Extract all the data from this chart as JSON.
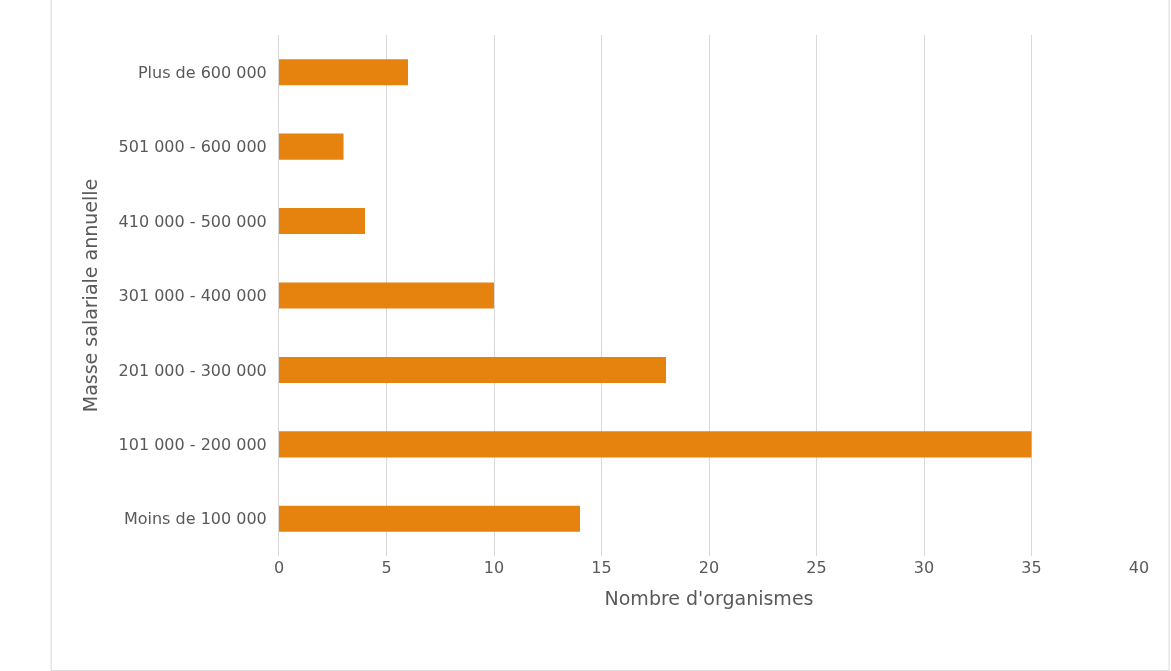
{
  "chart_data": {
    "type": "bar",
    "orientation": "horizontal",
    "xlabel": "Nombre d'organismes",
    "ylabel": "Masse salariale annuelle",
    "categories": [
      "Plus de 600 000",
      "501 000 - 600 000",
      "410 000 - 500 000",
      "301 000 - 400 000",
      "201 000 - 300 000",
      "101 000 - 200 000",
      "Moins de 100 000"
    ],
    "values": [
      6,
      3,
      4,
      10,
      18,
      35,
      14
    ],
    "color": "#e6820e",
    "xlim": [
      0,
      40
    ],
    "xticks": [
      0,
      5,
      10,
      15,
      20,
      25,
      30,
      35,
      40
    ],
    "grid": "x",
    "legend": false
  }
}
